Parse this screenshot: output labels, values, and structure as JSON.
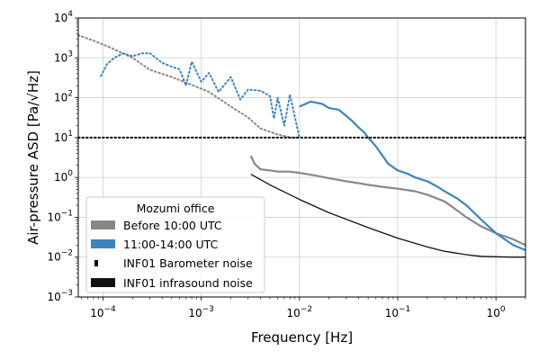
{
  "chart_data": {
    "type": "line",
    "title": "",
    "xlabel": "Frequency [Hz]",
    "ylabel": "Air-pressure ASD [Pa/√Hz]",
    "xscale": "log",
    "yscale": "log",
    "xlim": [
      5.6e-05,
      2.0
    ],
    "ylim": [
      0.001,
      10000
    ],
    "grid": true,
    "x_ticks": [
      {
        "value": 0.0001,
        "base": "10",
        "exp": "−4"
      },
      {
        "value": 0.001,
        "base": "10",
        "exp": "−3"
      },
      {
        "value": 0.01,
        "base": "10",
        "exp": "−2"
      },
      {
        "value": 0.1,
        "base": "10",
        "exp": "−1"
      },
      {
        "value": 1,
        "base": "10",
        "exp": "0"
      }
    ],
    "y_ticks": [
      {
        "value": 0.001,
        "base": "10",
        "exp": "−3"
      },
      {
        "value": 0.01,
        "base": "10",
        "exp": "−2"
      },
      {
        "value": 0.1,
        "base": "10",
        "exp": "−1"
      },
      {
        "value": 1,
        "base": "10",
        "exp": "0"
      },
      {
        "value": 10,
        "base": "10",
        "exp": "1"
      },
      {
        "value": 100,
        "base": "10",
        "exp": "2"
      },
      {
        "value": 1000,
        "base": "10",
        "exp": "3"
      },
      {
        "value": 10000,
        "base": "10",
        "exp": "4"
      }
    ],
    "legend": {
      "title": "Mozumi office",
      "position": "lower-left",
      "entries": [
        {
          "label": "Before 10:00 UTC",
          "color": "#888888"
        },
        {
          "label": "11:00-14:00 UTC",
          "color": "#3b85c2"
        },
        {
          "label": "INF01 Barometer noise",
          "color": "#000000"
        },
        {
          "label": "INF01 infrasound noise",
          "color": "#000000"
        }
      ]
    },
    "series": [
      {
        "name": "Before 10:00 UTC",
        "color": "#888888",
        "style": "dotted",
        "x": [
          5.6e-05,
          8e-05,
          0.00012,
          0.0002,
          0.0003,
          0.0005,
          0.0008,
          0.0012,
          0.002,
          0.003,
          0.004,
          0.005,
          0.006,
          0.007,
          0.008,
          0.01
        ],
        "y": [
          3700,
          2700,
          1800,
          1000,
          500,
          330,
          210,
          140,
          60,
          32,
          17,
          14,
          12,
          11,
          10,
          10
        ]
      },
      {
        "name": "Before 10:00 UTC",
        "color": "#888888",
        "style": "solid",
        "x": [
          0.0032,
          0.0035,
          0.004,
          0.005,
          0.006,
          0.008,
          0.01,
          0.015,
          0.02,
          0.03,
          0.04,
          0.05,
          0.07,
          0.1,
          0.15,
          0.2,
          0.3,
          0.4,
          0.5,
          0.7,
          1.0,
          1.5,
          2.0
        ],
        "y": [
          3.5,
          2.2,
          1.6,
          1.5,
          1.4,
          1.4,
          1.3,
          1.1,
          0.95,
          0.8,
          0.72,
          0.65,
          0.58,
          0.52,
          0.45,
          0.37,
          0.25,
          0.15,
          0.1,
          0.06,
          0.04,
          0.028,
          0.02
        ]
      },
      {
        "name": "11:00-14:00 UTC",
        "color": "#3b85c2",
        "style": "dotted",
        "x": [
          9.5e-05,
          0.00011,
          0.00013,
          0.00016,
          0.0002,
          0.00025,
          0.0003,
          0.0004,
          0.0005,
          0.0006,
          0.0007,
          0.0008,
          0.001,
          0.0012,
          0.0015,
          0.002,
          0.0025,
          0.003,
          0.004,
          0.005,
          0.0055,
          0.006,
          0.007,
          0.008,
          0.01
        ],
        "y": [
          350,
          700,
          1000,
          1300,
          1100,
          1300,
          1300,
          750,
          600,
          520,
          200,
          800,
          250,
          420,
          140,
          330,
          90,
          160,
          150,
          110,
          30,
          100,
          20,
          120,
          10
        ]
      },
      {
        "name": "11:00-14:00 UTC",
        "color": "#3b85c2",
        "style": "solid",
        "x": [
          0.01,
          0.013,
          0.017,
          0.02,
          0.025,
          0.03,
          0.035,
          0.04,
          0.045,
          0.05,
          0.06,
          0.07,
          0.08,
          0.1,
          0.13,
          0.15,
          0.2,
          0.25,
          0.3,
          0.4,
          0.5,
          0.7,
          1.0,
          1.5,
          2.0
        ],
        "y": [
          60,
          80,
          70,
          55,
          50,
          35,
          25,
          18,
          14,
          10,
          6,
          3.5,
          2.2,
          1.5,
          1.2,
          1.0,
          0.8,
          0.6,
          0.45,
          0.3,
          0.2,
          0.09,
          0.04,
          0.02,
          0.015
        ]
      },
      {
        "name": "INF01 Barometer noise",
        "color": "#000000",
        "style": "dotted",
        "x": [
          5.6e-05,
          2.0
        ],
        "y": [
          10,
          10
        ]
      },
      {
        "name": "INF01 infrasound noise",
        "color": "#111111",
        "style": "solid",
        "x": [
          0.0032,
          0.005,
          0.01,
          0.02,
          0.05,
          0.1,
          0.2,
          0.3,
          0.5,
          0.7,
          1.0,
          1.5,
          2.0
        ],
        "y": [
          1.2,
          0.65,
          0.28,
          0.13,
          0.055,
          0.03,
          0.018,
          0.014,
          0.0115,
          0.0105,
          0.0102,
          0.01,
          0.01
        ]
      }
    ]
  }
}
